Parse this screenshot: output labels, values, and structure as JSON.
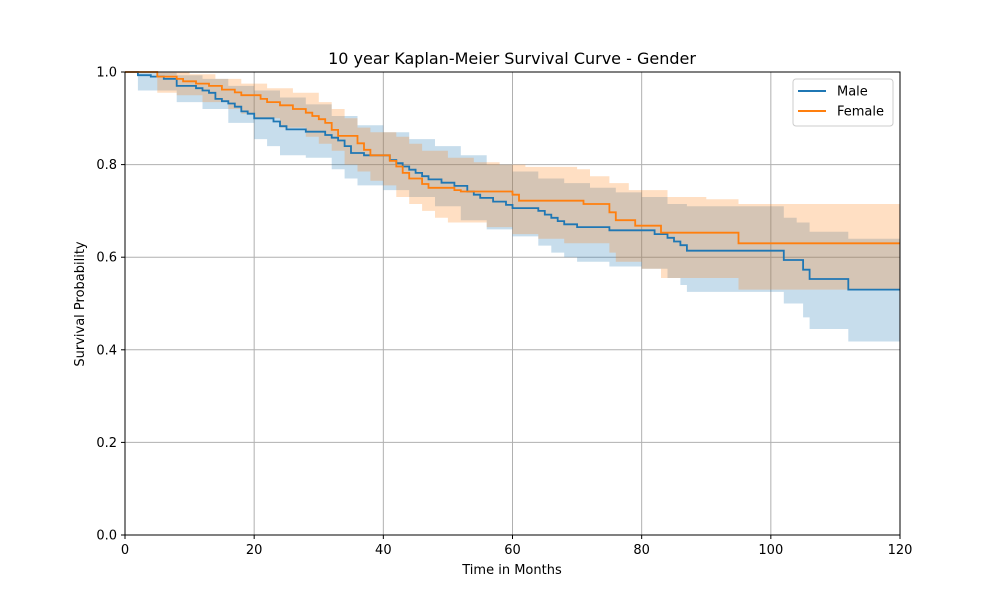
{
  "chart_data": {
    "type": "line",
    "title": "10 year Kaplan-Meier Survival Curve - Gender",
    "xlabel": "Time in Months",
    "ylabel": "Survival Probability",
    "xlim": [
      0,
      120
    ],
    "ylim": [
      0,
      1
    ],
    "x_ticks": [
      "0",
      "20",
      "40",
      "60",
      "80",
      "100",
      "120"
    ],
    "y_ticks": [
      "0.0",
      "0.2",
      "0.4",
      "0.6",
      "0.8",
      "1.0"
    ],
    "grid": true,
    "legend_position": "top-right",
    "series": [
      {
        "name": "Male",
        "color": "#1f77b4",
        "band_color": "#1f77b4",
        "steps": [
          [
            0,
            1.0
          ],
          [
            2,
            0.993
          ],
          [
            4,
            0.99
          ],
          [
            6,
            0.985
          ],
          [
            8,
            0.97
          ],
          [
            11,
            0.965
          ],
          [
            12,
            0.96
          ],
          [
            13,
            0.955
          ],
          [
            14,
            0.942
          ],
          [
            15,
            0.937
          ],
          [
            16,
            0.932
          ],
          [
            17,
            0.925
          ],
          [
            18,
            0.915
          ],
          [
            19,
            0.91
          ],
          [
            20,
            0.9
          ],
          [
            23,
            0.893
          ],
          [
            24,
            0.883
          ],
          [
            25,
            0.876
          ],
          [
            28,
            0.871
          ],
          [
            31,
            0.864
          ],
          [
            32,
            0.858
          ],
          [
            33,
            0.852
          ],
          [
            34,
            0.84
          ],
          [
            35,
            0.825
          ],
          [
            37,
            0.82
          ],
          [
            41,
            0.81
          ],
          [
            42,
            0.803
          ],
          [
            43,
            0.796
          ],
          [
            44,
            0.789
          ],
          [
            45,
            0.782
          ],
          [
            46,
            0.775
          ],
          [
            47,
            0.768
          ],
          [
            49,
            0.761
          ],
          [
            51,
            0.754
          ],
          [
            53,
            0.742
          ],
          [
            54,
            0.735
          ],
          [
            55,
            0.728
          ],
          [
            57,
            0.72
          ],
          [
            59,
            0.713
          ],
          [
            60,
            0.706
          ],
          [
            64,
            0.7
          ],
          [
            65,
            0.692
          ],
          [
            66,
            0.685
          ],
          [
            67,
            0.678
          ],
          [
            68,
            0.671
          ],
          [
            70,
            0.665
          ],
          [
            75,
            0.658
          ],
          [
            82,
            0.65
          ],
          [
            84,
            0.642
          ],
          [
            85,
            0.634
          ],
          [
            86,
            0.626
          ],
          [
            87,
            0.614
          ],
          [
            102,
            0.594
          ],
          [
            105,
            0.573
          ],
          [
            106,
            0.553
          ],
          [
            112,
            0.53
          ],
          [
            120,
            0.53
          ]
        ],
        "upper": [
          [
            0,
            1.0
          ],
          [
            2,
            1.0
          ],
          [
            5,
            0.998
          ],
          [
            8,
            0.993
          ],
          [
            12,
            0.985
          ],
          [
            16,
            0.97
          ],
          [
            20,
            0.96
          ],
          [
            24,
            0.945
          ],
          [
            28,
            0.93
          ],
          [
            32,
            0.905
          ],
          [
            36,
            0.885
          ],
          [
            40,
            0.87
          ],
          [
            44,
            0.855
          ],
          [
            48,
            0.84
          ],
          [
            52,
            0.82
          ],
          [
            56,
            0.8
          ],
          [
            60,
            0.785
          ],
          [
            64,
            0.77
          ],
          [
            68,
            0.76
          ],
          [
            72,
            0.75
          ],
          [
            76,
            0.74
          ],
          [
            80,
            0.73
          ],
          [
            84,
            0.715
          ],
          [
            87,
            0.71
          ],
          [
            102,
            0.685
          ],
          [
            104,
            0.675
          ],
          [
            106,
            0.655
          ],
          [
            112,
            0.64
          ],
          [
            120,
            0.64
          ]
        ],
        "lower": [
          [
            0,
            1.0
          ],
          [
            2,
            0.96
          ],
          [
            4,
            0.96
          ],
          [
            8,
            0.935
          ],
          [
            12,
            0.92
          ],
          [
            16,
            0.89
          ],
          [
            20,
            0.855
          ],
          [
            22,
            0.84
          ],
          [
            24,
            0.82
          ],
          [
            28,
            0.815
          ],
          [
            32,
            0.79
          ],
          [
            34,
            0.77
          ],
          [
            36,
            0.755
          ],
          [
            40,
            0.745
          ],
          [
            44,
            0.73
          ],
          [
            48,
            0.71
          ],
          [
            52,
            0.68
          ],
          [
            56,
            0.66
          ],
          [
            60,
            0.645
          ],
          [
            64,
            0.625
          ],
          [
            66,
            0.61
          ],
          [
            68,
            0.6
          ],
          [
            70,
            0.59
          ],
          [
            75,
            0.58
          ],
          [
            80,
            0.575
          ],
          [
            84,
            0.555
          ],
          [
            86,
            0.54
          ],
          [
            87,
            0.525
          ],
          [
            100,
            0.525
          ],
          [
            102,
            0.5
          ],
          [
            105,
            0.47
          ],
          [
            106,
            0.445
          ],
          [
            112,
            0.418
          ],
          [
            120,
            0.418
          ]
        ]
      },
      {
        "name": "Female",
        "color": "#ff7f0e",
        "band_color": "#ff7f0e",
        "steps": [
          [
            0,
            1.0
          ],
          [
            5,
            0.99
          ],
          [
            8,
            0.985
          ],
          [
            9,
            0.98
          ],
          [
            11,
            0.975
          ],
          [
            13,
            0.97
          ],
          [
            15,
            0.962
          ],
          [
            17,
            0.956
          ],
          [
            18,
            0.95
          ],
          [
            21,
            0.942
          ],
          [
            22,
            0.935
          ],
          [
            24,
            0.928
          ],
          [
            26,
            0.92
          ],
          [
            28,
            0.912
          ],
          [
            29,
            0.905
          ],
          [
            30,
            0.898
          ],
          [
            31,
            0.89
          ],
          [
            32,
            0.875
          ],
          [
            33,
            0.862
          ],
          [
            36,
            0.846
          ],
          [
            37,
            0.832
          ],
          [
            38,
            0.82
          ],
          [
            41,
            0.808
          ],
          [
            42,
            0.796
          ],
          [
            43,
            0.782
          ],
          [
            44,
            0.77
          ],
          [
            46,
            0.758
          ],
          [
            47,
            0.75
          ],
          [
            51,
            0.745
          ],
          [
            52,
            0.742
          ],
          [
            60,
            0.735
          ],
          [
            61,
            0.722
          ],
          [
            71,
            0.715
          ],
          [
            75,
            0.697
          ],
          [
            76,
            0.68
          ],
          [
            79,
            0.668
          ],
          [
            83,
            0.653
          ],
          [
            95,
            0.63
          ],
          [
            120,
            0.63
          ]
        ],
        "upper": [
          [
            0,
            1.0
          ],
          [
            5,
            1.0
          ],
          [
            10,
            0.995
          ],
          [
            14,
            0.985
          ],
          [
            18,
            0.975
          ],
          [
            22,
            0.965
          ],
          [
            26,
            0.955
          ],
          [
            30,
            0.935
          ],
          [
            32,
            0.92
          ],
          [
            34,
            0.9
          ],
          [
            36,
            0.88
          ],
          [
            38,
            0.87
          ],
          [
            42,
            0.86
          ],
          [
            44,
            0.845
          ],
          [
            46,
            0.83
          ],
          [
            50,
            0.815
          ],
          [
            54,
            0.805
          ],
          [
            58,
            0.8
          ],
          [
            62,
            0.795
          ],
          [
            70,
            0.79
          ],
          [
            72,
            0.775
          ],
          [
            75,
            0.76
          ],
          [
            78,
            0.745
          ],
          [
            84,
            0.73
          ],
          [
            90,
            0.725
          ],
          [
            95,
            0.715
          ],
          [
            112,
            0.715
          ],
          [
            120,
            0.715
          ]
        ],
        "lower": [
          [
            0,
            1.0
          ],
          [
            5,
            0.955
          ],
          [
            8,
            0.95
          ],
          [
            12,
            0.935
          ],
          [
            16,
            0.92
          ],
          [
            18,
            0.91
          ],
          [
            20,
            0.9
          ],
          [
            24,
            0.88
          ],
          [
            28,
            0.86
          ],
          [
            30,
            0.845
          ],
          [
            32,
            0.83
          ],
          [
            34,
            0.8
          ],
          [
            36,
            0.785
          ],
          [
            38,
            0.765
          ],
          [
            40,
            0.755
          ],
          [
            42,
            0.73
          ],
          [
            44,
            0.715
          ],
          [
            46,
            0.7
          ],
          [
            48,
            0.685
          ],
          [
            50,
            0.675
          ],
          [
            56,
            0.665
          ],
          [
            60,
            0.65
          ],
          [
            64,
            0.64
          ],
          [
            68,
            0.63
          ],
          [
            75,
            0.61
          ],
          [
            76,
            0.59
          ],
          [
            80,
            0.575
          ],
          [
            83,
            0.555
          ],
          [
            95,
            0.53
          ],
          [
            120,
            0.53
          ]
        ]
      }
    ]
  }
}
